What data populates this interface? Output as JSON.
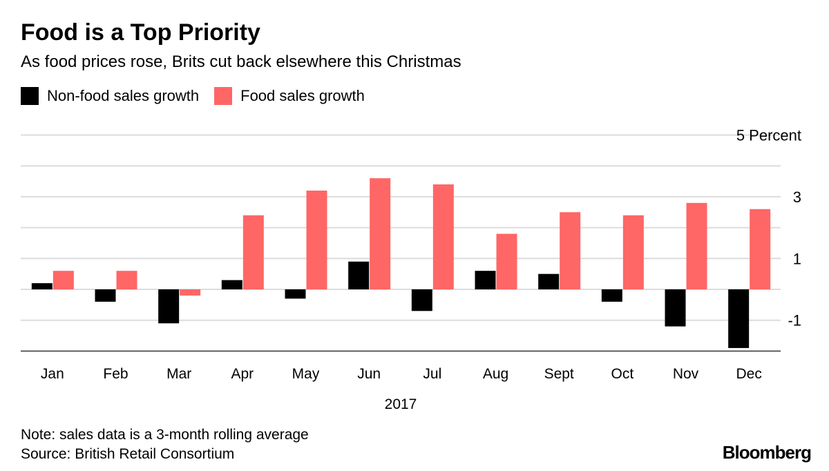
{
  "title": "Food is a Top Priority",
  "subtitle": "As food prices rose, Brits cut back elsewhere this Christmas",
  "note": "Note: sales data is a 3-month rolling average",
  "source": "Source: British Retail Consortium",
  "logo": "Bloomberg",
  "chart_data": {
    "type": "bar",
    "title": "Food is a Top Priority",
    "xlabel": "2017",
    "ylabel": "",
    "unit_label": "5 Percent",
    "ylim": [
      -2,
      5
    ],
    "yticks": [
      5,
      3,
      1,
      -1
    ],
    "ytick_labels": [
      "5 Percent",
      "3",
      "1",
      "-1"
    ],
    "gridlines": [
      5,
      4,
      3,
      2,
      1,
      0,
      -1,
      -2
    ],
    "grid": true,
    "legend": "top-left",
    "categories": [
      "Jan",
      "Feb",
      "Mar",
      "Apr",
      "May",
      "Jun",
      "Jul",
      "Aug",
      "Sept",
      "Oct",
      "Nov",
      "Dec"
    ],
    "series": [
      {
        "name": "Non-food sales growth",
        "color": "#000000",
        "values": [
          0.2,
          -0.4,
          -1.1,
          0.3,
          -0.3,
          0.9,
          -0.7,
          0.6,
          0.5,
          -0.4,
          -1.2,
          -1.9
        ]
      },
      {
        "name": "Food sales growth",
        "color": "#ff6666",
        "values": [
          0.6,
          0.6,
          -0.2,
          2.4,
          3.2,
          3.6,
          3.4,
          1.8,
          2.5,
          2.4,
          2.8,
          2.6
        ]
      }
    ]
  }
}
